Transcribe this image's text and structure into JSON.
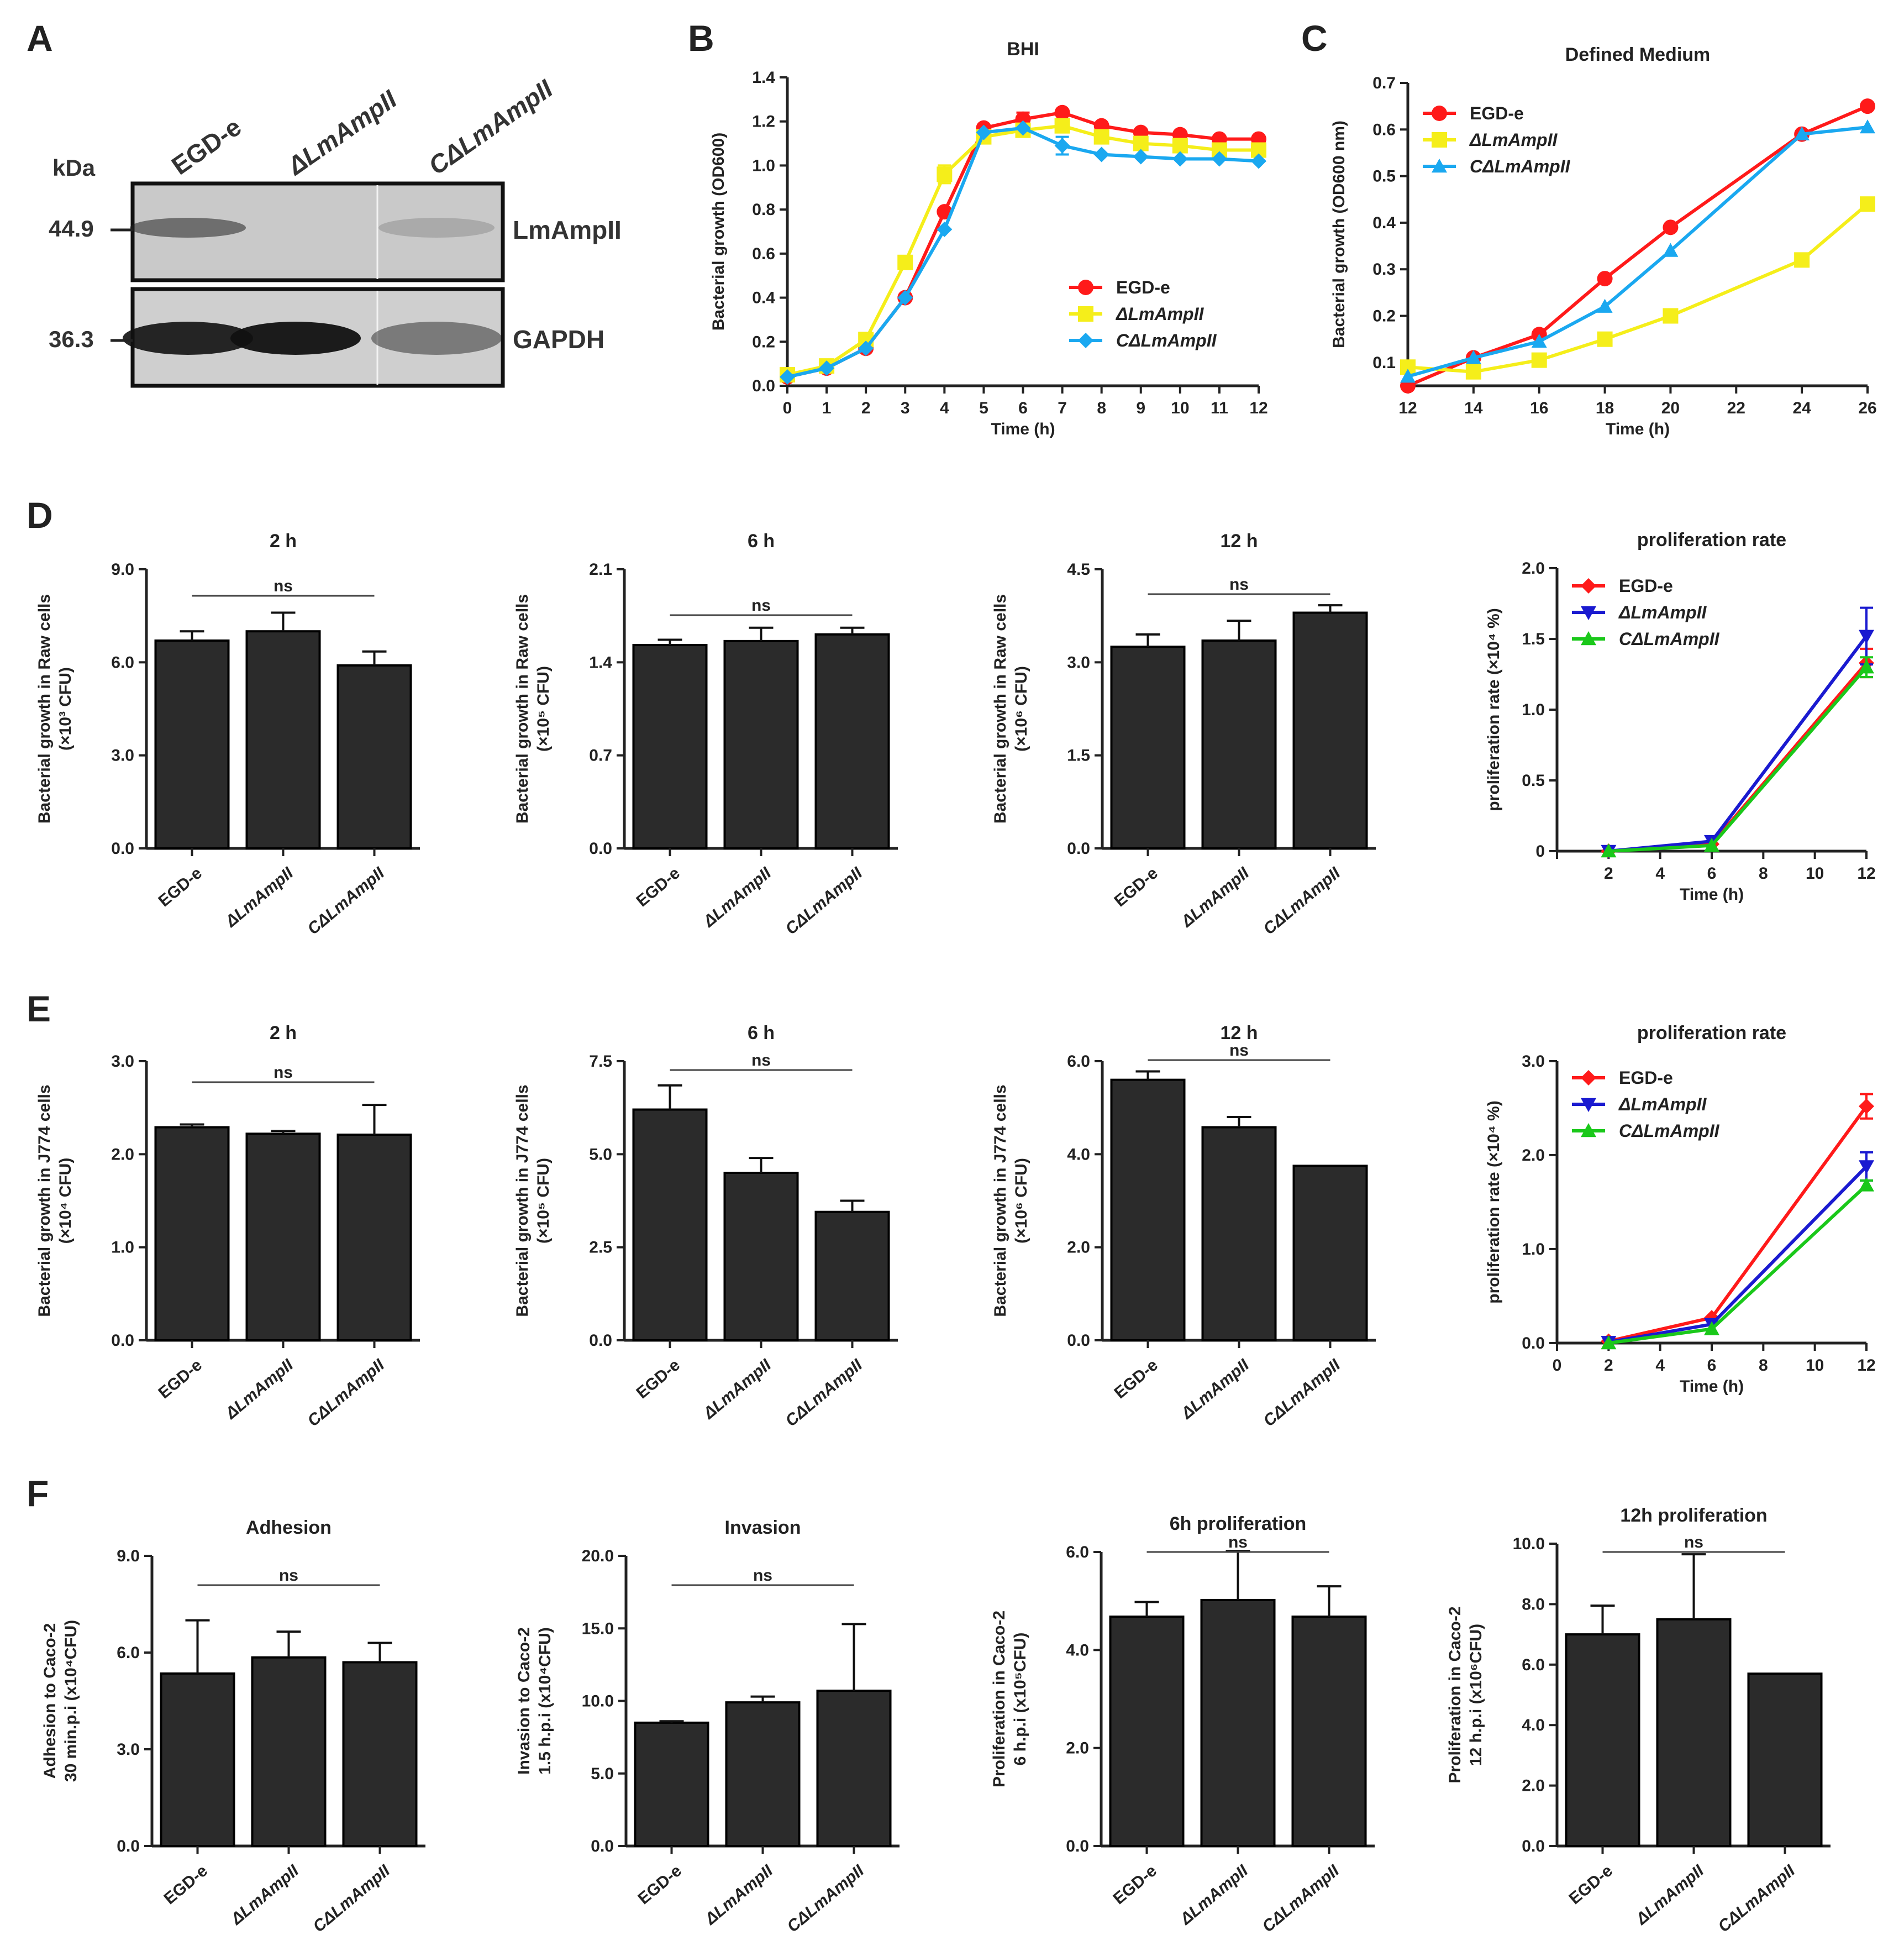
{
  "panel_labels": [
    "A",
    "B",
    "C",
    "D",
    "E",
    "F"
  ],
  "western_blot": {
    "lanes": [
      "EGD-e",
      "ΔLmAmpII",
      "CΔLmAmpII"
    ],
    "kda_label": "kDa",
    "markers": [
      "44.9",
      "36.3"
    ],
    "bands": [
      "LmAmpII",
      "GAPDH"
    ],
    "lmampii_intensity": [
      0.55,
      0.0,
      0.18
    ],
    "gapdh_intensity": [
      0.9,
      0.95,
      0.45
    ]
  },
  "chart_data": [
    {
      "id": "B",
      "type": "line",
      "title": "BHI",
      "xlabel": "Time (h)",
      "ylabel": "Bacterial growth (OD600)",
      "xlim": [
        0,
        12
      ],
      "ylim": [
        0,
        1.4
      ],
      "xticks": [
        "0",
        "1",
        "2",
        "3",
        "4",
        "5",
        "6",
        "7",
        "8",
        "9",
        "10",
        "11",
        "12"
      ],
      "yticks": [
        "0.0",
        "0.2",
        "0.4",
        "0.6",
        "0.8",
        "1.0",
        "1.2",
        "1.4"
      ],
      "x": [
        0,
        1,
        2,
        3,
        4,
        5,
        6,
        7,
        8,
        9,
        10,
        11,
        12
      ],
      "legend_position": "bottom-right",
      "series": [
        {
          "name": "EGD-e",
          "color": "#ff1a1a",
          "marker": "circle",
          "values": [
            0.04,
            0.08,
            0.17,
            0.4,
            0.79,
            1.17,
            1.21,
            1.24,
            1.18,
            1.15,
            1.14,
            1.12,
            1.12
          ],
          "errors": [
            0,
            0,
            0,
            0,
            0,
            0,
            0.03,
            0,
            0,
            0,
            0,
            0,
            0
          ]
        },
        {
          "name": "ΔLmAmpII",
          "color": "#f5ee1a",
          "marker": "square",
          "values": [
            0.05,
            0.09,
            0.21,
            0.56,
            0.96,
            1.13,
            1.16,
            1.18,
            1.13,
            1.1,
            1.09,
            1.07,
            1.07
          ],
          "errors": [
            0,
            0,
            0,
            0,
            0.04,
            0,
            0,
            0,
            0,
            0,
            0,
            0,
            0
          ]
        },
        {
          "name": "CΔLmAmpII",
          "color": "#1aa8f0",
          "marker": "diamond",
          "values": [
            0.04,
            0.08,
            0.17,
            0.4,
            0.71,
            1.15,
            1.17,
            1.09,
            1.05,
            1.04,
            1.03,
            1.03,
            1.02
          ],
          "errors": [
            0,
            0,
            0,
            0,
            0,
            0,
            0,
            0.04,
            0,
            0,
            0,
            0,
            0
          ]
        }
      ]
    },
    {
      "id": "C",
      "type": "line",
      "title": "Defined Medium",
      "xlabel": "Time (h)",
      "ylabel": "Bacterial growth (OD600 nm)",
      "xlim": [
        12,
        26
      ],
      "ylim": [
        0.05,
        0.7
      ],
      "xticks": [
        "12",
        "14",
        "16",
        "18",
        "20",
        "22",
        "24",
        "26"
      ],
      "yticks": [
        "0.1",
        "0.2",
        "0.3",
        "0.4",
        "0.5",
        "0.6",
        "0.7"
      ],
      "x": [
        12,
        14,
        16,
        18,
        20,
        24,
        26
      ],
      "legend_position": "top-left",
      "series": [
        {
          "name": "EGD-e",
          "color": "#ff1a1a",
          "marker": "circle",
          "values": [
            0.05,
            0.11,
            0.16,
            0.28,
            0.39,
            0.59,
            0.65
          ]
        },
        {
          "name": "ΔLmAmpII",
          "color": "#f5ee1a",
          "marker": "square",
          "values": [
            0.09,
            0.08,
            0.105,
            0.15,
            0.2,
            0.32,
            0.44
          ]
        },
        {
          "name": "CΔLmAmpII",
          "color": "#1aa8f0",
          "marker": "triangle",
          "values": [
            0.07,
            0.11,
            0.145,
            0.22,
            0.34,
            0.59,
            0.605
          ]
        }
      ]
    },
    {
      "id": "D1",
      "type": "bar",
      "title": "2 h",
      "ylabel_lines": [
        "Bacterial growth in Raw cells",
        "(×10³ CFU)"
      ],
      "categories": [
        "EGD-e",
        "ΔLmAmpII",
        "CΔLmAmpII"
      ],
      "yticks": [
        "0.0",
        "3.0",
        "6.0",
        "9.0"
      ],
      "ylim": [
        0,
        9
      ],
      "values": [
        6.7,
        7.0,
        5.9
      ],
      "errors": [
        0.3,
        0.6,
        0.45
      ],
      "significance": "ns"
    },
    {
      "id": "D2",
      "type": "bar",
      "title": "6 h",
      "ylabel_lines": [
        "Bacterial growth in Raw cells",
        "(×10⁵ CFU)"
      ],
      "categories": [
        "EGD-e",
        "ΔLmAmpII",
        "CΔLmAmpII"
      ],
      "yticks": [
        "0.0",
        "0.7",
        "1.4",
        "2.1"
      ],
      "ylim": [
        0,
        2.1
      ],
      "values": [
        1.53,
        1.56,
        1.61
      ],
      "errors": [
        0.04,
        0.1,
        0.05
      ],
      "significance": "ns"
    },
    {
      "id": "D3",
      "type": "bar",
      "title": "12 h",
      "ylabel_lines": [
        "Bacterial growth in Raw cells",
        "(×10⁶ CFU)"
      ],
      "categories": [
        "EGD-e",
        "ΔLmAmpII",
        "CΔLmAmpII"
      ],
      "yticks": [
        "0.0",
        "1.5",
        "3.0",
        "4.5"
      ],
      "ylim": [
        0,
        4.5
      ],
      "values": [
        3.25,
        3.35,
        3.8
      ],
      "errors": [
        0.2,
        0.32,
        0.12
      ],
      "significance": "ns"
    },
    {
      "id": "D4",
      "type": "line",
      "title": "proliferation rate",
      "xlabel": "Time (h)",
      "ylabel": "proliferation rate (×10⁴ %)",
      "xlim": [
        0,
        12
      ],
      "ylim": [
        0,
        2.0
      ],
      "xticks": [
        "2",
        "4",
        "6",
        "8",
        "10",
        "12"
      ],
      "yticks": [
        "0",
        "0.5",
        "1.0",
        "1.5",
        "2.0"
      ],
      "x": [
        2,
        6,
        12
      ],
      "legend_position": "top-left",
      "series": [
        {
          "name": "EGD-e",
          "color": "#ff1a1a",
          "marker": "diamond",
          "values": [
            0.0,
            0.05,
            1.33
          ],
          "errors": [
            0,
            0,
            0.1
          ]
        },
        {
          "name": "ΔLmAmpII",
          "color": "#1a1ad0",
          "marker": "triangle-down",
          "values": [
            0.0,
            0.07,
            1.52
          ],
          "errors": [
            0,
            0,
            0.2
          ]
        },
        {
          "name": "CΔLmAmpII",
          "color": "#1ac81a",
          "marker": "triangle",
          "values": [
            0.0,
            0.04,
            1.3
          ],
          "errors": [
            0,
            0,
            0.07
          ]
        }
      ]
    },
    {
      "id": "E1",
      "type": "bar",
      "title": "2 h",
      "ylabel_lines": [
        "Bacterial growth in J774 cells",
        "(×10⁴ CFU)"
      ],
      "categories": [
        "EGD-e",
        "ΔLmAmpII",
        "CΔLmAmpII"
      ],
      "yticks": [
        "0.0",
        "1.0",
        "2.0",
        "3.0"
      ],
      "ylim": [
        0,
        3.0
      ],
      "values": [
        2.29,
        2.22,
        2.21
      ],
      "errors": [
        0.03,
        0.03,
        0.32
      ],
      "significance": "ns"
    },
    {
      "id": "E2",
      "type": "bar",
      "title": "6 h",
      "ylabel_lines": [
        "Bacterial growth in J774 cells",
        "(×10⁵ CFU)"
      ],
      "categories": [
        "EGD-e",
        "ΔLmAmpII",
        "CΔLmAmpII"
      ],
      "yticks": [
        "0.0",
        "2.5",
        "5.0",
        "7.5"
      ],
      "ylim": [
        0,
        7.5
      ],
      "values": [
        6.2,
        4.5,
        3.45
      ],
      "errors": [
        0.65,
        0.4,
        0.3
      ],
      "significance": "ns"
    },
    {
      "id": "E3",
      "type": "bar",
      "title": "12 h",
      "ylabel_lines": [
        "Bacterial growth in J774 cells",
        "(×10⁶ CFU)"
      ],
      "categories": [
        "EGD-e",
        "ΔLmAmpII",
        "CΔLmAmpII"
      ],
      "yticks": [
        "0.0",
        "2.0",
        "4.0",
        "6.0"
      ],
      "ylim": [
        0,
        6.0
      ],
      "values": [
        5.6,
        4.58,
        3.75
      ],
      "errors": [
        0.18,
        0.22,
        0
      ],
      "significance": "ns"
    },
    {
      "id": "E4",
      "type": "line",
      "title": "proliferation rate",
      "xlabel": "Time (h)",
      "ylabel": "proliferation rate (×10⁴ %)",
      "xlim": [
        0,
        12
      ],
      "ylim": [
        0,
        3.0
      ],
      "xticks": [
        "0",
        "2",
        "4",
        "6",
        "8",
        "10",
        "12"
      ],
      "yticks": [
        "0.0",
        "1.0",
        "2.0",
        "3.0"
      ],
      "x": [
        2,
        6,
        12
      ],
      "legend_position": "top-left",
      "series": [
        {
          "name": "EGD-e",
          "color": "#ff1a1a",
          "marker": "diamond",
          "values": [
            0.02,
            0.27,
            2.52
          ],
          "errors": [
            0,
            0,
            0.13
          ]
        },
        {
          "name": "ΔLmAmpII",
          "color": "#1a1ad0",
          "marker": "triangle-down",
          "values": [
            0.01,
            0.2,
            1.88
          ],
          "errors": [
            0,
            0,
            0.15
          ]
        },
        {
          "name": "CΔLmAmpII",
          "color": "#1ac81a",
          "marker": "triangle",
          "values": [
            0.0,
            0.15,
            1.68
          ],
          "errors": [
            0,
            0,
            0.05
          ]
        }
      ]
    },
    {
      "id": "F1",
      "type": "bar",
      "title": "Adhesion",
      "ylabel_lines": [
        "Adhesion to Caco-2",
        "30 min.p.i (x10⁴CFU)"
      ],
      "categories": [
        "EGD-e",
        "ΔLmAmpII",
        "CΔLmAmpII"
      ],
      "yticks": [
        "0.0",
        "3.0",
        "6.0",
        "9.0"
      ],
      "ylim": [
        0,
        9.0
      ],
      "values": [
        5.35,
        5.85,
        5.7
      ],
      "errors": [
        1.65,
        0.8,
        0.6
      ],
      "significance": "ns"
    },
    {
      "id": "F2",
      "type": "bar",
      "title": "Invasion",
      "ylabel_lines": [
        "Invasion to Caco-2",
        "1.5 h.p.i (x10⁴CFU)"
      ],
      "categories": [
        "EGD-e",
        "ΔLmAmpII",
        "CΔLmAmpII"
      ],
      "yticks": [
        "0.0",
        "5.0",
        "10.0",
        "15.0",
        "20.0"
      ],
      "ylim": [
        0,
        20.0
      ],
      "values": [
        8.5,
        9.9,
        10.7
      ],
      "errors": [
        0.1,
        0.4,
        4.6
      ],
      "significance": "ns"
    },
    {
      "id": "F3",
      "type": "bar",
      "title": "6h proliferation",
      "ylabel_lines": [
        "Proliferation in Caco-2",
        "6 h.p.i (x10⁵CFU)"
      ],
      "categories": [
        "EGD-e",
        "ΔLmAmpII",
        "CΔLmAmpII"
      ],
      "yticks": [
        "0.0",
        "2.0",
        "4.0",
        "6.0"
      ],
      "ylim": [
        0,
        6.0
      ],
      "values": [
        4.68,
        5.02,
        4.68
      ],
      "errors": [
        0.3,
        1.0,
        0.62
      ],
      "significance": "ns"
    },
    {
      "id": "F4",
      "type": "bar",
      "title": "12h proliferation",
      "ylabel_lines": [
        "Proliferation in Caco-2",
        "12 h.p.i (x10⁶CFU)"
      ],
      "categories": [
        "EGD-e",
        "ΔLmAmpII",
        "CΔLmAmpII"
      ],
      "yticks": [
        "0.0",
        "2.0",
        "4.0",
        "6.0",
        "8.0",
        "10.0"
      ],
      "ylim": [
        0,
        10.0
      ],
      "values": [
        7.0,
        7.5,
        5.7
      ],
      "errors": [
        0.95,
        2.15,
        0
      ],
      "significance": "ns"
    }
  ]
}
